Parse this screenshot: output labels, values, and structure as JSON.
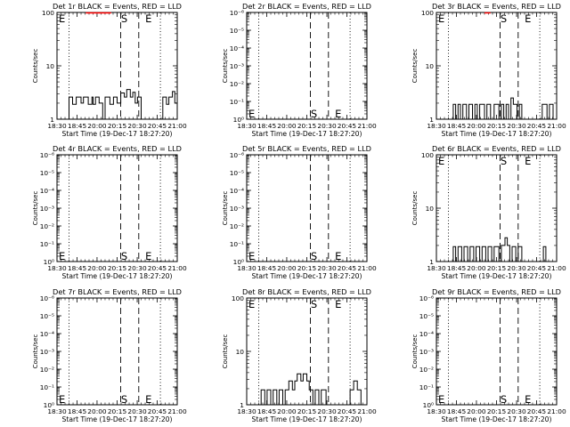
{
  "figure": {
    "xlabel": "Start Time (19-Dec-17 18:27:20)",
    "ylabel": "Counts/sec",
    "x_ticks": [
      "18:30",
      "18:45",
      "20:00",
      "20:15",
      "20:30",
      "20:45",
      "21:00"
    ],
    "dotted_lines": [
      "18:45",
      "20:45"
    ],
    "start_marker": "S",
    "end_marker": "E",
    "colors": {
      "events": "#000000",
      "lld": "#ff0000"
    }
  },
  "chart_data": [
    {
      "type": "line",
      "title": "Det 1r BLACK = Events, RED = LLD",
      "yscale": "log",
      "ylim": [
        1,
        100
      ],
      "y_tick_labels": [
        "1",
        "10",
        "100"
      ],
      "marker_labels": {
        "start": "E",
        "s": "S",
        "e": "E"
      },
      "markers": {
        "start_y": "top",
        "s_y": "top",
        "e_y": "top"
      },
      "events_segments": [
        [
          [
            0.0,
            1.0
          ],
          [
            0.1,
            1.0
          ],
          [
            0.1,
            2.6
          ],
          [
            0.13,
            2.6
          ],
          [
            0.13,
            1.9
          ],
          [
            0.16,
            1.9
          ],
          [
            0.16,
            2.6
          ],
          [
            0.2,
            2.6
          ],
          [
            0.2,
            2.0
          ],
          [
            0.22,
            2.0
          ],
          [
            0.22,
            2.6
          ],
          [
            0.26,
            2.6
          ],
          [
            0.26,
            1.9
          ],
          [
            0.29,
            1.9
          ],
          [
            0.29,
            2.6
          ],
          [
            0.3,
            2.6
          ],
          [
            0.3,
            1.9
          ],
          [
            0.32,
            1.9
          ],
          [
            0.32,
            2.6
          ],
          [
            0.35,
            2.6
          ],
          [
            0.35,
            2.0
          ],
          [
            0.38,
            2.0
          ],
          [
            0.38,
            1.0
          ],
          [
            0.4,
            1.0
          ],
          [
            0.4,
            2.6
          ],
          [
            0.44,
            2.6
          ],
          [
            0.44,
            1.9
          ],
          [
            0.47,
            1.9
          ],
          [
            0.47,
            2.6
          ],
          [
            0.5,
            2.6
          ],
          [
            0.5,
            2.0
          ],
          [
            0.53,
            2.0
          ],
          [
            0.53,
            3.1
          ],
          [
            0.56,
            3.1
          ],
          [
            0.56,
            2.6
          ],
          [
            0.58,
            2.6
          ],
          [
            0.58,
            3.6
          ],
          [
            0.61,
            3.6
          ],
          [
            0.61,
            2.6
          ],
          [
            0.63,
            2.6
          ],
          [
            0.63,
            3.2
          ],
          [
            0.65,
            3.2
          ],
          [
            0.65,
            2.0
          ],
          [
            0.67,
            2.0
          ],
          [
            0.67,
            2.6
          ],
          [
            0.7,
            2.6
          ],
          [
            0.7,
            1.0
          ],
          [
            0.72,
            1.0
          ]
        ],
        [
          [
            0.86,
            1.0
          ],
          [
            0.88,
            1.0
          ],
          [
            0.88,
            2.6
          ],
          [
            0.91,
            2.6
          ],
          [
            0.91,
            1.9
          ],
          [
            0.93,
            1.9
          ],
          [
            0.93,
            2.6
          ],
          [
            0.96,
            2.6
          ],
          [
            0.96,
            3.3
          ],
          [
            0.98,
            3.3
          ],
          [
            0.98,
            2.0
          ],
          [
            1.0,
            2.0
          ]
        ]
      ],
      "lld_segments": [
        [
          [
            0.24,
            98
          ],
          [
            0.45,
            98
          ]
        ]
      ]
    },
    {
      "type": "line",
      "title": "Det 2r BLACK = Events, RED = LLD",
      "yscale": "log",
      "ylim": [
        1,
        1000000
      ],
      "y_tick_labels": [
        "10⁰",
        "10⁻¹",
        "10⁻²",
        "10⁻³",
        "10⁻⁴",
        "10⁻⁵",
        "10⁻⁶"
      ],
      "marker_labels": {
        "start": "E",
        "s": "S",
        "e": "E"
      },
      "markers": {
        "start_y": "bottom",
        "s_y": "bottom",
        "e_y": "bottom"
      },
      "events_segments": [],
      "lld_segments": []
    },
    {
      "type": "line",
      "title": "Det 3r BLACK = Events, RED = LLD",
      "yscale": "log",
      "ylim": [
        1,
        100
      ],
      "y_tick_labels": [
        "1",
        "10",
        "100"
      ],
      "marker_labels": {
        "start": "E",
        "s": "S",
        "e": "E"
      },
      "markers": {
        "start_y": "top",
        "s_y": "top",
        "e_y": "top"
      },
      "events_segments": [
        [
          [
            0.0,
            1.0
          ],
          [
            0.14,
            1.0
          ],
          [
            0.14,
            1.9
          ],
          [
            0.16,
            1.9
          ],
          [
            0.16,
            1.0
          ],
          [
            0.18,
            1.0
          ],
          [
            0.18,
            1.9
          ],
          [
            0.2,
            1.9
          ],
          [
            0.2,
            1.0
          ],
          [
            0.22,
            1.0
          ],
          [
            0.22,
            1.9
          ],
          [
            0.25,
            1.9
          ],
          [
            0.25,
            1.0
          ],
          [
            0.27,
            1.0
          ],
          [
            0.27,
            1.9
          ],
          [
            0.3,
            1.9
          ],
          [
            0.3,
            1.0
          ],
          [
            0.32,
            1.0
          ],
          [
            0.32,
            1.9
          ],
          [
            0.34,
            1.9
          ],
          [
            0.34,
            1.0
          ],
          [
            0.36,
            1.0
          ],
          [
            0.36,
            1.9
          ],
          [
            0.4,
            1.9
          ],
          [
            0.4,
            1.0
          ],
          [
            0.42,
            1.0
          ],
          [
            0.42,
            1.9
          ],
          [
            0.45,
            1.9
          ],
          [
            0.45,
            1.0
          ],
          [
            0.48,
            1.0
          ],
          [
            0.48,
            1.9
          ],
          [
            0.52,
            1.9
          ],
          [
            0.52,
            1.0
          ],
          [
            0.54,
            1.0
          ],
          [
            0.54,
            1.9
          ],
          [
            0.56,
            1.9
          ],
          [
            0.56,
            1.0
          ],
          [
            0.58,
            1.0
          ],
          [
            0.58,
            1.9
          ],
          [
            0.6,
            1.9
          ],
          [
            0.6,
            1.0
          ],
          [
            0.62,
            1.0
          ],
          [
            0.62,
            2.5
          ],
          [
            0.64,
            2.5
          ],
          [
            0.64,
            1.9
          ],
          [
            0.67,
            1.9
          ],
          [
            0.67,
            1.0
          ],
          [
            0.69,
            1.0
          ],
          [
            0.69,
            1.9
          ],
          [
            0.71,
            1.9
          ],
          [
            0.71,
            1.0
          ]
        ],
        [
          [
            0.86,
            1.0
          ],
          [
            0.88,
            1.0
          ],
          [
            0.88,
            1.9
          ],
          [
            0.92,
            1.9
          ],
          [
            0.92,
            1.0
          ],
          [
            0.94,
            1.0
          ],
          [
            0.94,
            1.9
          ],
          [
            0.97,
            1.9
          ],
          [
            0.97,
            1.0
          ],
          [
            1.0,
            1.0
          ]
        ]
      ],
      "lld_segments": [
        [
          [
            0.4,
            98
          ],
          [
            0.45,
            98
          ]
        ]
      ]
    },
    {
      "type": "line",
      "title": "Det 4r BLACK = Events, RED = LLD",
      "yscale": "log",
      "ylim": [
        1,
        1000000
      ],
      "y_tick_labels": [
        "10⁰",
        "10⁻¹",
        "10⁻²",
        "10⁻³",
        "10⁻⁴",
        "10⁻⁵",
        "10⁻⁶"
      ],
      "marker_labels": {
        "start": "E",
        "s": "S",
        "e": "E"
      },
      "markers": {
        "start_y": "bottom",
        "s_y": "bottom",
        "e_y": "bottom"
      },
      "events_segments": [],
      "lld_segments": []
    },
    {
      "type": "line",
      "title": "Det 5r BLACK = Events, RED = LLD",
      "yscale": "log",
      "ylim": [
        1,
        1000000
      ],
      "y_tick_labels": [
        "10⁰",
        "10⁻¹",
        "10⁻²",
        "10⁻³",
        "10⁻⁴",
        "10⁻⁵",
        "10⁻⁶"
      ],
      "marker_labels": {
        "start": "E",
        "s": "S",
        "e": "E"
      },
      "markers": {
        "start_y": "bottom",
        "s_y": "bottom",
        "e_y": "bottom"
      },
      "events_segments": [],
      "lld_segments": []
    },
    {
      "type": "line",
      "title": "Det 6r BLACK = Events, RED = LLD",
      "yscale": "log",
      "ylim": [
        1,
        100
      ],
      "y_tick_labels": [
        "1",
        "10",
        "100"
      ],
      "marker_labels": {
        "start": "E",
        "s": "S",
        "e": "E"
      },
      "markers": {
        "start_y": "top",
        "s_y": "top",
        "e_y": "top"
      },
      "events_segments": [
        [
          [
            0.0,
            1.0
          ],
          [
            0.14,
            1.0
          ],
          [
            0.14,
            1.9
          ],
          [
            0.16,
            1.9
          ],
          [
            0.16,
            1.0
          ],
          [
            0.18,
            1.0
          ],
          [
            0.18,
            1.9
          ],
          [
            0.21,
            1.9
          ],
          [
            0.21,
            1.0
          ],
          [
            0.23,
            1.0
          ],
          [
            0.23,
            1.9
          ],
          [
            0.26,
            1.9
          ],
          [
            0.26,
            1.0
          ],
          [
            0.28,
            1.0
          ],
          [
            0.28,
            1.9
          ],
          [
            0.31,
            1.9
          ],
          [
            0.31,
            1.0
          ],
          [
            0.33,
            1.0
          ],
          [
            0.33,
            1.9
          ],
          [
            0.36,
            1.9
          ],
          [
            0.36,
            1.0
          ],
          [
            0.38,
            1.0
          ],
          [
            0.38,
            1.9
          ],
          [
            0.41,
            1.9
          ],
          [
            0.41,
            1.0
          ],
          [
            0.43,
            1.0
          ],
          [
            0.43,
            1.9
          ],
          [
            0.46,
            1.9
          ],
          [
            0.46,
            1.0
          ],
          [
            0.48,
            1.0
          ],
          [
            0.48,
            1.9
          ],
          [
            0.52,
            1.9
          ],
          [
            0.52,
            1.0
          ],
          [
            0.54,
            1.0
          ],
          [
            0.54,
            2.0
          ],
          [
            0.57,
            2.0
          ],
          [
            0.57,
            2.8
          ],
          [
            0.59,
            2.8
          ],
          [
            0.59,
            2.0
          ],
          [
            0.61,
            2.0
          ],
          [
            0.61,
            1.0
          ],
          [
            0.63,
            1.0
          ],
          [
            0.63,
            1.9
          ],
          [
            0.66,
            1.9
          ],
          [
            0.66,
            1.0
          ],
          [
            0.68,
            1.0
          ],
          [
            0.68,
            1.9
          ],
          [
            0.71,
            1.9
          ],
          [
            0.71,
            1.0
          ]
        ],
        [
          [
            0.87,
            1.0
          ],
          [
            0.89,
            1.0
          ],
          [
            0.89,
            1.9
          ],
          [
            0.91,
            1.9
          ],
          [
            0.91,
            1.0
          ],
          [
            0.93,
            1.0
          ]
        ]
      ],
      "lld_segments": []
    },
    {
      "type": "line",
      "title": "Det 7r BLACK = Events, RED = LLD",
      "yscale": "log",
      "ylim": [
        1,
        1000000
      ],
      "y_tick_labels": [
        "10⁰",
        "10⁻¹",
        "10⁻²",
        "10⁻³",
        "10⁻⁴",
        "10⁻⁵",
        "10⁻⁶"
      ],
      "marker_labels": {
        "start": "E",
        "s": "S",
        "e": "E"
      },
      "markers": {
        "start_y": "bottom",
        "s_y": "bottom",
        "e_y": "bottom"
      },
      "events_segments": [],
      "lld_segments": []
    },
    {
      "type": "line",
      "title": "Det 8r BLACK = Events, RED = LLD",
      "yscale": "log",
      "ylim": [
        1,
        100
      ],
      "y_tick_labels": [
        "1",
        "10",
        "100"
      ],
      "marker_labels": {
        "start": "E",
        "s": "S",
        "e": "E"
      },
      "markers": {
        "start_y": "top",
        "s_y": "top",
        "e_y": "top"
      },
      "events_segments": [
        [
          [
            0.0,
            1.0
          ],
          [
            0.12,
            1.0
          ],
          [
            0.12,
            1.9
          ],
          [
            0.15,
            1.9
          ],
          [
            0.15,
            1.0
          ],
          [
            0.17,
            1.0
          ],
          [
            0.17,
            1.9
          ],
          [
            0.2,
            1.9
          ],
          [
            0.2,
            1.0
          ],
          [
            0.22,
            1.0
          ],
          [
            0.22,
            1.9
          ],
          [
            0.25,
            1.9
          ],
          [
            0.25,
            1.0
          ],
          [
            0.27,
            1.0
          ],
          [
            0.27,
            1.9
          ],
          [
            0.3,
            1.9
          ],
          [
            0.3,
            1.0
          ],
          [
            0.32,
            1.0
          ],
          [
            0.32,
            1.9
          ],
          [
            0.35,
            1.9
          ],
          [
            0.35,
            2.8
          ],
          [
            0.38,
            2.8
          ],
          [
            0.38,
            1.9
          ],
          [
            0.4,
            1.9
          ],
          [
            0.4,
            2.8
          ],
          [
            0.42,
            2.8
          ],
          [
            0.42,
            3.8
          ],
          [
            0.45,
            3.8
          ],
          [
            0.45,
            2.8
          ],
          [
            0.47,
            2.8
          ],
          [
            0.47,
            3.8
          ],
          [
            0.5,
            3.8
          ],
          [
            0.5,
            2.8
          ],
          [
            0.52,
            2.8
          ],
          [
            0.52,
            1.9
          ],
          [
            0.55,
            1.9
          ],
          [
            0.55,
            1.0
          ],
          [
            0.57,
            1.0
          ],
          [
            0.57,
            1.9
          ],
          [
            0.6,
            1.9
          ],
          [
            0.6,
            1.0
          ],
          [
            0.62,
            1.0
          ],
          [
            0.62,
            1.9
          ],
          [
            0.66,
            1.9
          ],
          [
            0.66,
            1.0
          ],
          [
            0.7,
            1.0
          ]
        ],
        [
          [
            0.84,
            1.0
          ],
          [
            0.86,
            1.0
          ],
          [
            0.86,
            1.9
          ],
          [
            0.89,
            1.9
          ],
          [
            0.89,
            2.8
          ],
          [
            0.92,
            2.8
          ],
          [
            0.92,
            1.9
          ],
          [
            0.95,
            1.9
          ],
          [
            0.95,
            1.0
          ],
          [
            0.98,
            1.0
          ]
        ]
      ],
      "lld_segments": []
    },
    {
      "type": "line",
      "title": "Det 9r BLACK = Events, RED = LLD",
      "yscale": "log",
      "ylim": [
        1,
        1000000
      ],
      "y_tick_labels": [
        "10⁰",
        "10⁻¹",
        "10⁻²",
        "10⁻³",
        "10⁻⁴",
        "10⁻⁵",
        "10⁻⁶"
      ],
      "marker_labels": {
        "start": "E",
        "s": "S",
        "e": "E"
      },
      "markers": {
        "start_y": "bottom",
        "s_y": "bottom",
        "e_y": "bottom"
      },
      "events_segments": [],
      "lld_segments": []
    }
  ]
}
